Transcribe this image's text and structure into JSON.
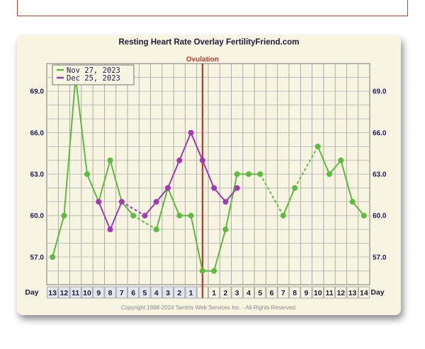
{
  "chart_data": {
    "type": "line",
    "title": "Resting Heart Rate Overlay FertilityFriend.com",
    "ovulation_label": "Ovulation",
    "copyright": "Copyright 1998-2024 Tamtris Web Services Inc. - All Rights Reserved.",
    "day_label": "Day",
    "categories": [
      "13",
      "12",
      "11",
      "10",
      "9",
      "8",
      "7",
      "6",
      "5",
      "4",
      "3",
      "2",
      "1",
      "",
      "1",
      "2",
      "3",
      "4",
      "5",
      "6",
      "7",
      "8",
      "9",
      "10",
      "11",
      "12",
      "13",
      "14"
    ],
    "ovulation_index": 13,
    "y_ticks": [
      "57.0",
      "60.0",
      "63.0",
      "66.0",
      "69.0"
    ],
    "ylim": [
      55,
      71
    ],
    "grid": true,
    "legend_position": "top-left",
    "series": [
      {
        "name": "Nov 27, 2023",
        "color": "#5dbb3f",
        "values": [
          57,
          60,
          70,
          63,
          61,
          64,
          61,
          60,
          null,
          59,
          62,
          60,
          60,
          56,
          56,
          59,
          63,
          63,
          63,
          null,
          60,
          62,
          null,
          65,
          63,
          64,
          61,
          60
        ],
        "dashed_gaps": [
          [
            7,
            9
          ],
          [
            18,
            20
          ],
          [
            21,
            23
          ]
        ]
      },
      {
        "name": "Dec 25, 2023",
        "color": "#a23ab5",
        "values": [
          null,
          null,
          null,
          null,
          61,
          59,
          61,
          null,
          60,
          61,
          62,
          64,
          66,
          64,
          62,
          61,
          62,
          null,
          null,
          null,
          null,
          null,
          null,
          null,
          null,
          null,
          null,
          null
        ],
        "dashed_gaps": [
          [
            6,
            8
          ]
        ]
      }
    ]
  }
}
